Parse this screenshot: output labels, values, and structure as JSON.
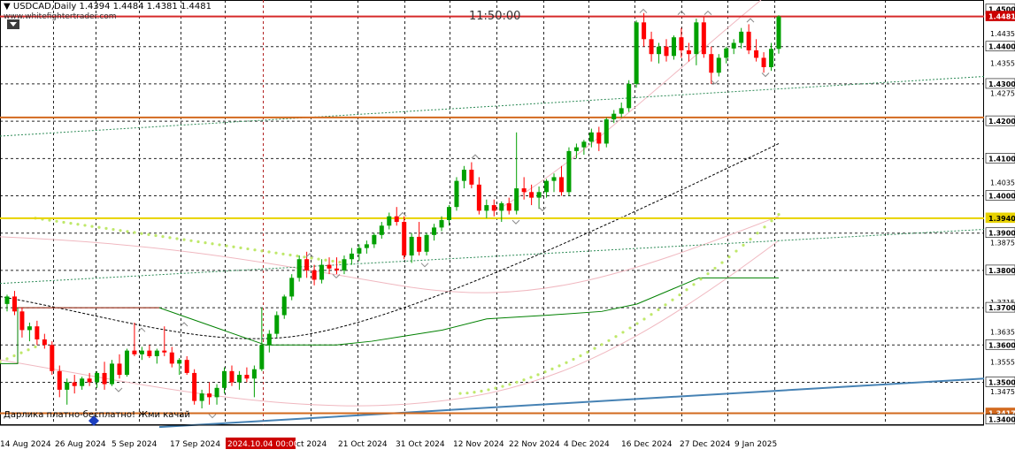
{
  "header": {
    "symbol": "USDCAD,Daily",
    "ohlc": "1.4394 1.4484 1.4381 1.4481",
    "site": "www.whitefightertrader.com",
    "clock": "11:50:00"
  },
  "bottom_note": "Дарлика платно-бесплатно! Жми качай",
  "colors": {
    "background": "#ffffff",
    "grid": "#000000",
    "bull": "#00a000",
    "bear": "#ff0000",
    "resistance_line": "#d62a2a",
    "support_line": "#d2691e",
    "yellow_line": "#e8d200",
    "trend_blue": "#4682b4",
    "dots": "#bfe86a",
    "kijun": "#008000",
    "envelope": "#f0b8c0",
    "dashed_black": "#000000",
    "price_tag_red": "#cc0000",
    "price_tag_orange": "#d2691e",
    "price_tag_yellow": "#e8d200"
  },
  "chart_data": {
    "type": "candlestick",
    "title": "USDCAD,Daily",
    "x_tick_labels": [
      "14 Aug 2024",
      "26 Aug 2024",
      "5 Sep 2024",
      "17 Sep 2024",
      "2024.10.04 00:00",
      "21 Oct 2024",
      "31 Oct 2024",
      "12 Nov 2024",
      "22 Nov 2024",
      "4 Dec 2024",
      "16 Dec 2024",
      "27 Dec 2024",
      "9 Jan 2025"
    ],
    "highlighted_time_label": "2024.10.04 00:00",
    "y_tick_labels": [
      "1.4435",
      "1.4355",
      "1.4275",
      "1.4035",
      "1.3875",
      "1.3715",
      "1.3635",
      "1.3555",
      "1.3475"
    ],
    "y_range": [
      1.3385,
      1.4525
    ],
    "price_tags": [
      {
        "label": "1.4500",
        "kind": "black"
      },
      {
        "label": "1.4481",
        "kind": "red"
      },
      {
        "label": "1.4400",
        "kind": "black"
      },
      {
        "label": "1.4300",
        "kind": "black"
      },
      {
        "label": "1.4200",
        "kind": "black"
      },
      {
        "label": "1.4100",
        "kind": "black"
      },
      {
        "label": "1.4000",
        "kind": "black"
      },
      {
        "label": "1.3940",
        "kind": "yellow"
      },
      {
        "label": "1.3900",
        "kind": "black"
      },
      {
        "label": "1.3800",
        "kind": "black"
      },
      {
        "label": "1.3700",
        "kind": "black"
      },
      {
        "label": "1.3600",
        "kind": "black"
      },
      {
        "label": "1.3500",
        "kind": "black"
      },
      {
        "label": "1.3417",
        "kind": "orange"
      },
      {
        "label": "1.3400",
        "kind": "black"
      }
    ],
    "horizontal_levels": [
      {
        "name": "resistance",
        "value": 1.4481,
        "color": "#d62a2a"
      },
      {
        "name": "support-1",
        "value": 1.421,
        "color": "#d2691e"
      },
      {
        "name": "yellow-level",
        "value": 1.394,
        "color": "#e8d200"
      },
      {
        "name": "support-2",
        "value": 1.3417,
        "color": "#d2691e"
      }
    ],
    "candles": [
      [
        1.371,
        1.3735,
        1.369,
        1.373
      ],
      [
        1.373,
        1.3745,
        1.368,
        1.369
      ],
      [
        1.369,
        1.37,
        1.362,
        1.364
      ],
      [
        1.364,
        1.366,
        1.361,
        1.365
      ],
      [
        1.365,
        1.3665,
        1.36,
        1.3615
      ],
      [
        1.3615,
        1.363,
        1.359,
        1.36
      ],
      [
        1.36,
        1.361,
        1.352,
        1.353
      ],
      [
        1.353,
        1.3545,
        1.346,
        1.348
      ],
      [
        1.348,
        1.351,
        1.344,
        1.35
      ],
      [
        1.35,
        1.352,
        1.347,
        1.349
      ],
      [
        1.349,
        1.3515,
        1.348,
        1.351
      ],
      [
        1.351,
        1.3525,
        1.349,
        1.35
      ],
      [
        1.35,
        1.353,
        1.3485,
        1.3525
      ],
      [
        1.3525,
        1.3555,
        1.348,
        1.3495
      ],
      [
        1.3495,
        1.356,
        1.349,
        1.355
      ],
      [
        1.355,
        1.3575,
        1.351,
        1.352
      ],
      [
        1.352,
        1.359,
        1.3515,
        1.3585
      ],
      [
        1.3585,
        1.366,
        1.357,
        1.3575
      ],
      [
        1.3575,
        1.3595,
        1.356,
        1.3585
      ],
      [
        1.3585,
        1.36,
        1.3565,
        1.357
      ],
      [
        1.357,
        1.359,
        1.355,
        1.3585
      ],
      [
        1.3585,
        1.365,
        1.357,
        1.358
      ],
      [
        1.358,
        1.3595,
        1.354,
        1.355
      ],
      [
        1.355,
        1.3565,
        1.352,
        1.356
      ],
      [
        1.356,
        1.357,
        1.352,
        1.3525
      ],
      [
        1.3525,
        1.3535,
        1.344,
        1.345
      ],
      [
        1.345,
        1.348,
        1.343,
        1.347
      ],
      [
        1.347,
        1.35,
        1.344,
        1.346
      ],
      [
        1.346,
        1.3495,
        1.344,
        1.3485
      ],
      [
        1.3485,
        1.354,
        1.347,
        1.353
      ],
      [
        1.353,
        1.3545,
        1.349,
        1.35
      ],
      [
        1.35,
        1.353,
        1.348,
        1.352
      ],
      [
        1.352,
        1.354,
        1.35,
        1.351
      ],
      [
        1.351,
        1.3545,
        1.346,
        1.3535
      ],
      [
        1.3535,
        1.37,
        1.353,
        1.36
      ],
      [
        1.36,
        1.364,
        1.358,
        1.363
      ],
      [
        1.363,
        1.369,
        1.362,
        1.368
      ],
      [
        1.368,
        1.3735,
        1.367,
        1.373
      ],
      [
        1.373,
        1.379,
        1.372,
        1.378
      ],
      [
        1.378,
        1.384,
        1.377,
        1.383
      ],
      [
        1.383,
        1.385,
        1.378,
        1.38
      ],
      [
        1.38,
        1.3815,
        1.376,
        1.3775
      ],
      [
        1.3775,
        1.383,
        1.3765,
        1.3815
      ],
      [
        1.3815,
        1.3835,
        1.379,
        1.3805
      ],
      [
        1.3805,
        1.3835,
        1.379,
        1.38
      ],
      [
        1.38,
        1.384,
        1.379,
        1.383
      ],
      [
        1.383,
        1.386,
        1.3815,
        1.3845
      ],
      [
        1.3845,
        1.387,
        1.3825,
        1.386
      ],
      [
        1.386,
        1.388,
        1.3845,
        1.387
      ],
      [
        1.387,
        1.39,
        1.386,
        1.3895
      ],
      [
        1.3895,
        1.393,
        1.3885,
        1.392
      ],
      [
        1.392,
        1.3955,
        1.391,
        1.3945
      ],
      [
        1.3945,
        1.397,
        1.392,
        1.393
      ],
      [
        1.393,
        1.3945,
        1.383,
        1.384
      ],
      [
        1.384,
        1.39,
        1.382,
        1.389
      ],
      [
        1.389,
        1.393,
        1.384,
        1.385
      ],
      [
        1.385,
        1.39,
        1.384,
        1.3895
      ],
      [
        1.3895,
        1.3925,
        1.388,
        1.3915
      ],
      [
        1.3915,
        1.3945,
        1.3905,
        1.3935
      ],
      [
        1.3935,
        1.3975,
        1.392,
        1.397
      ],
      [
        1.397,
        1.405,
        1.396,
        1.404
      ],
      [
        1.404,
        1.408,
        1.402,
        1.407
      ],
      [
        1.407,
        1.409,
        1.402,
        1.403
      ],
      [
        1.403,
        1.405,
        1.395,
        1.396
      ],
      [
        1.396,
        1.399,
        1.394,
        1.3975
      ],
      [
        1.3975,
        1.399,
        1.3945,
        1.396
      ],
      [
        1.396,
        1.3985,
        1.393,
        1.398
      ],
      [
        1.398,
        1.3995,
        1.395,
        1.396
      ],
      [
        1.396,
        1.417,
        1.395,
        1.402
      ],
      [
        1.402,
        1.405,
        1.399,
        1.401
      ],
      [
        1.401,
        1.403,
        1.3975,
        1.3995
      ],
      [
        1.3995,
        1.4025,
        1.3965,
        1.401
      ],
      [
        1.401,
        1.4045,
        1.3995,
        1.404
      ],
      [
        1.404,
        1.406,
        1.401,
        1.405
      ],
      [
        1.405,
        1.408,
        1.4,
        1.401
      ],
      [
        1.401,
        1.413,
        1.4,
        1.412
      ],
      [
        1.412,
        1.414,
        1.41,
        1.413
      ],
      [
        1.413,
        1.415,
        1.411,
        1.4145
      ],
      [
        1.4145,
        1.418,
        1.413,
        1.417
      ],
      [
        1.417,
        1.4185,
        1.412,
        1.414
      ],
      [
        1.414,
        1.421,
        1.413,
        1.4205
      ],
      [
        1.4205,
        1.423,
        1.4195,
        1.422
      ],
      [
        1.422,
        1.425,
        1.421,
        1.4235
      ],
      [
        1.4235,
        1.431,
        1.4225,
        1.43
      ],
      [
        1.43,
        1.447,
        1.429,
        1.4465
      ],
      [
        1.4465,
        1.449,
        1.44,
        1.442
      ],
      [
        1.442,
        1.444,
        1.436,
        1.438
      ],
      [
        1.438,
        1.441,
        1.4355,
        1.44
      ],
      [
        1.44,
        1.442,
        1.436,
        1.4375
      ],
      [
        1.4375,
        1.443,
        1.4365,
        1.4425
      ],
      [
        1.4425,
        1.445,
        1.437,
        1.439
      ],
      [
        1.439,
        1.441,
        1.436,
        1.438
      ],
      [
        1.438,
        1.4475,
        1.435,
        1.4465
      ],
      [
        1.4465,
        1.448,
        1.437,
        1.438
      ],
      [
        1.438,
        1.44,
        1.43,
        1.433
      ],
      [
        1.433,
        1.438,
        1.432,
        1.437
      ],
      [
        1.437,
        1.44,
        1.4355,
        1.4395
      ],
      [
        1.4395,
        1.442,
        1.438,
        1.441
      ],
      [
        1.441,
        1.445,
        1.4395,
        1.444
      ],
      [
        1.444,
        1.446,
        1.438,
        1.439
      ],
      [
        1.439,
        1.442,
        1.436,
        1.437
      ],
      [
        1.437,
        1.4385,
        1.433,
        1.4345
      ],
      [
        1.4345,
        1.441,
        1.4335,
        1.4394
      ],
      [
        1.4394,
        1.4484,
        1.4381,
        1.4481
      ]
    ]
  }
}
